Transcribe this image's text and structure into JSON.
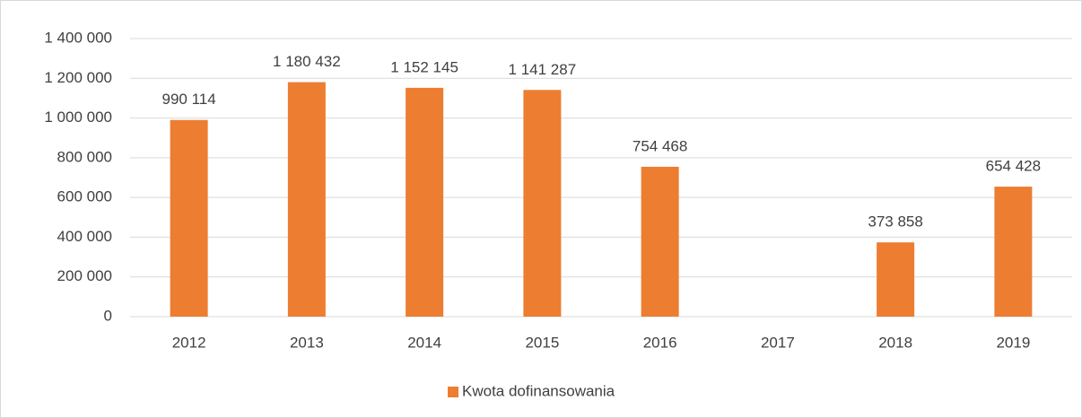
{
  "chart_data": {
    "type": "bar",
    "categories": [
      "2012",
      "2013",
      "2014",
      "2015",
      "2016",
      "2017",
      "2018",
      "2019"
    ],
    "series": [
      {
        "name": "Kwota dofinansowania",
        "color": "#ed7d31",
        "values": [
          990114,
          1180432,
          1152145,
          1141287,
          754468,
          null,
          373858,
          654428
        ],
        "value_labels": [
          "990 114",
          "1 180 432",
          "1 152 145",
          "1 141 287",
          "754 468",
          null,
          "373 858",
          "654 428"
        ]
      }
    ],
    "ylim": [
      0,
      1400000
    ],
    "yticks": [
      0,
      {
        "value": 200000,
        "label": "200 000"
      },
      {
        "value": 400000,
        "label": "400 000"
      },
      {
        "value": 600000,
        "label": "600 000"
      },
      {
        "value": 800000,
        "label": "800 000"
      },
      {
        "value": 1000000,
        "label": "1 000 000"
      },
      {
        "value": 1200000,
        "label": "1 200 000"
      },
      {
        "value": 1400000,
        "label": "1 400 000"
      }
    ],
    "grid": true,
    "legend": "bottom"
  }
}
